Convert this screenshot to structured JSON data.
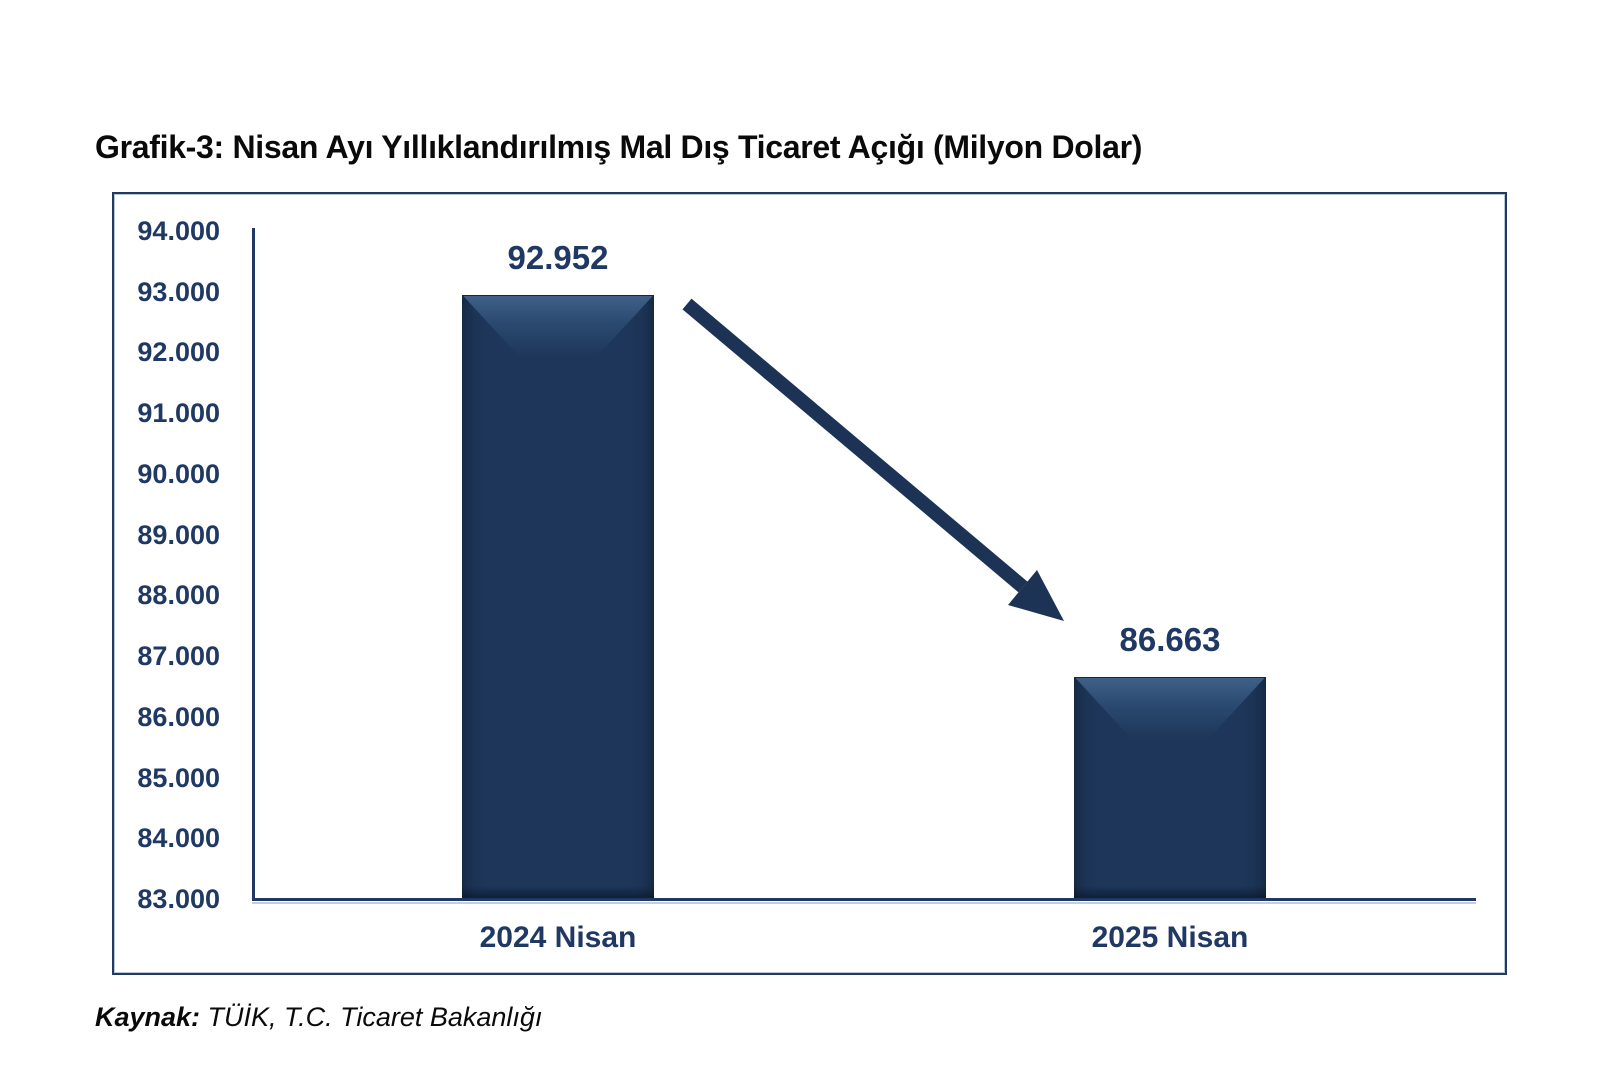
{
  "page": {
    "title": "Grafik-3: Nisan Ayı Yıllıklandırılmış Mal Dış Ticaret Açığı (Milyon Dolar)",
    "source_label": "Kaynak:",
    "source_text": " TÜİK, T.C. Ticaret Bakanlığı"
  },
  "colors": {
    "navy_text": "#1f3864",
    "bar_fill": "#1d3659",
    "bar_bevel_highlight": "#44658d",
    "axis_line": "#1f3864",
    "frame_border": "#24395f",
    "arrow": "#1d3356",
    "title_text": "#0a0a0a"
  },
  "chart_data": {
    "type": "bar",
    "title": "Grafik-3: Nisan Ayı Yıllıklandırılmış Mal Dış Ticaret Açığı (Milyon Dolar)",
    "categories": [
      "2024 Nisan",
      "2025 Nisan"
    ],
    "values": [
      92952,
      86663
    ],
    "value_labels": [
      "92.952",
      "86.663"
    ],
    "xlabel": "",
    "ylabel": "",
    "ylim": [
      83000,
      94000
    ],
    "ytick_step": 1000,
    "ytick_labels": [
      "94.000",
      "93.000",
      "92.000",
      "91.000",
      "90.000",
      "89.000",
      "88.000",
      "87.000",
      "86.000",
      "85.000",
      "84.000",
      "83.000"
    ],
    "grid": false,
    "legend": false,
    "annotations": [
      "thick navy arrow pointing down-right from top of 2024 bar to label of 2025 bar, indicating decrease"
    ],
    "source": "Kaynak: TÜİK, T.C. Ticaret Bakanlığı"
  }
}
